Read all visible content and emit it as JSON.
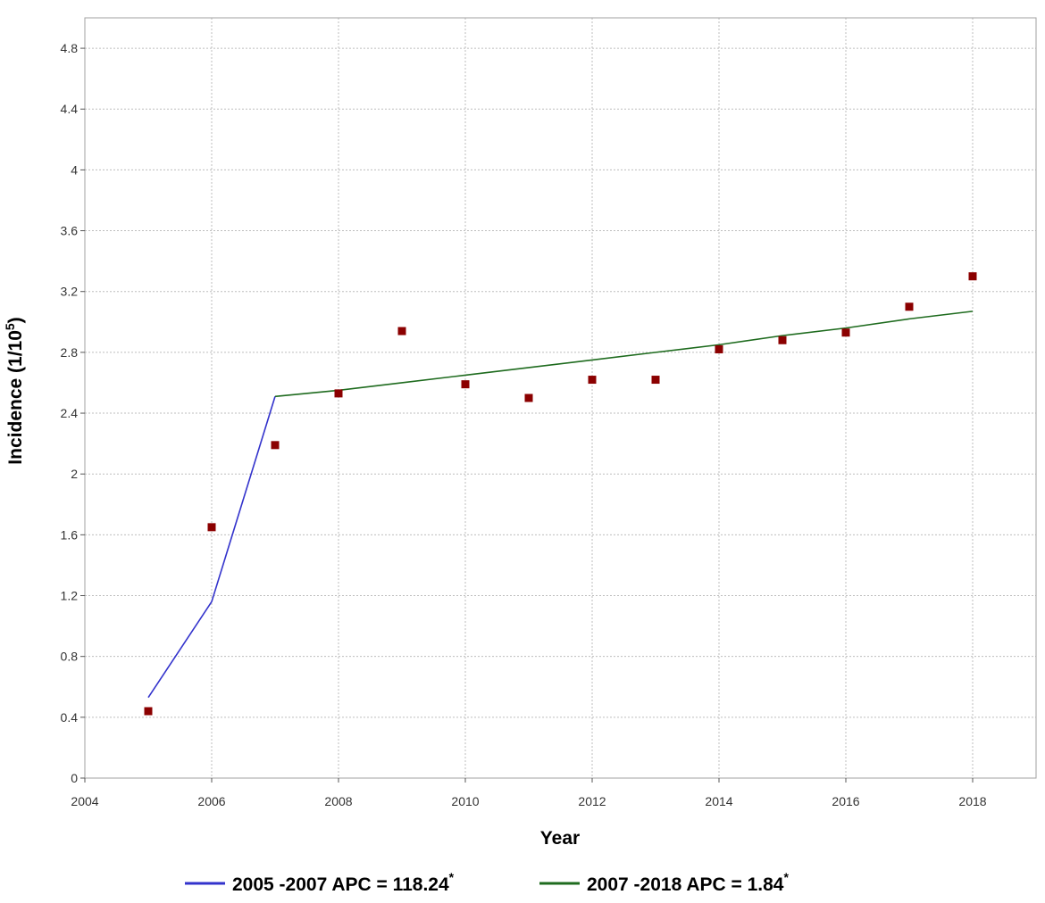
{
  "chart_data": {
    "type": "scatter",
    "title": "",
    "xlabel": "Year",
    "ylabel": "Incidence (1/10^5)",
    "ylabel_main": "Incidence (1/10",
    "ylabel_sup": "5",
    "ylabel_tail": ")",
    "xlim": [
      2004,
      2019
    ],
    "ylim": [
      0,
      5.0
    ],
    "grid": true,
    "x_ticks": [
      2004,
      2006,
      2008,
      2010,
      2012,
      2014,
      2016,
      2018
    ],
    "y_ticks": [
      0,
      0.4,
      0.8,
      1.2,
      1.6,
      2,
      2.4,
      2.8,
      3.2,
      3.6,
      4,
      4.4,
      4.8
    ],
    "points": {
      "color": "#8b0000",
      "x": [
        2005,
        2006,
        2007,
        2008,
        2009,
        2010,
        2011,
        2012,
        2013,
        2014,
        2015,
        2016,
        2017,
        2018
      ],
      "y": [
        0.44,
        1.65,
        2.19,
        2.53,
        2.94,
        2.59,
        2.5,
        2.62,
        2.62,
        2.82,
        2.88,
        2.93,
        3.1,
        3.3
      ]
    },
    "series": [
      {
        "name": "2005 -2007 APC = 118.24",
        "name_sup": "*",
        "color": "#3333cc",
        "x": [
          2005,
          2006,
          2007
        ],
        "y": [
          0.53,
          1.16,
          2.51
        ]
      },
      {
        "name": "2007 -2018 APC = 1.84",
        "name_sup": "*",
        "color": "#1e6b1e",
        "x": [
          2007,
          2008,
          2009,
          2010,
          2011,
          2012,
          2013,
          2014,
          2015,
          2016,
          2017,
          2018
        ],
        "y": [
          2.51,
          2.55,
          2.6,
          2.65,
          2.7,
          2.75,
          2.8,
          2.85,
          2.91,
          2.96,
          3.02,
          3.07
        ]
      }
    ],
    "legend_position": "bottom"
  }
}
